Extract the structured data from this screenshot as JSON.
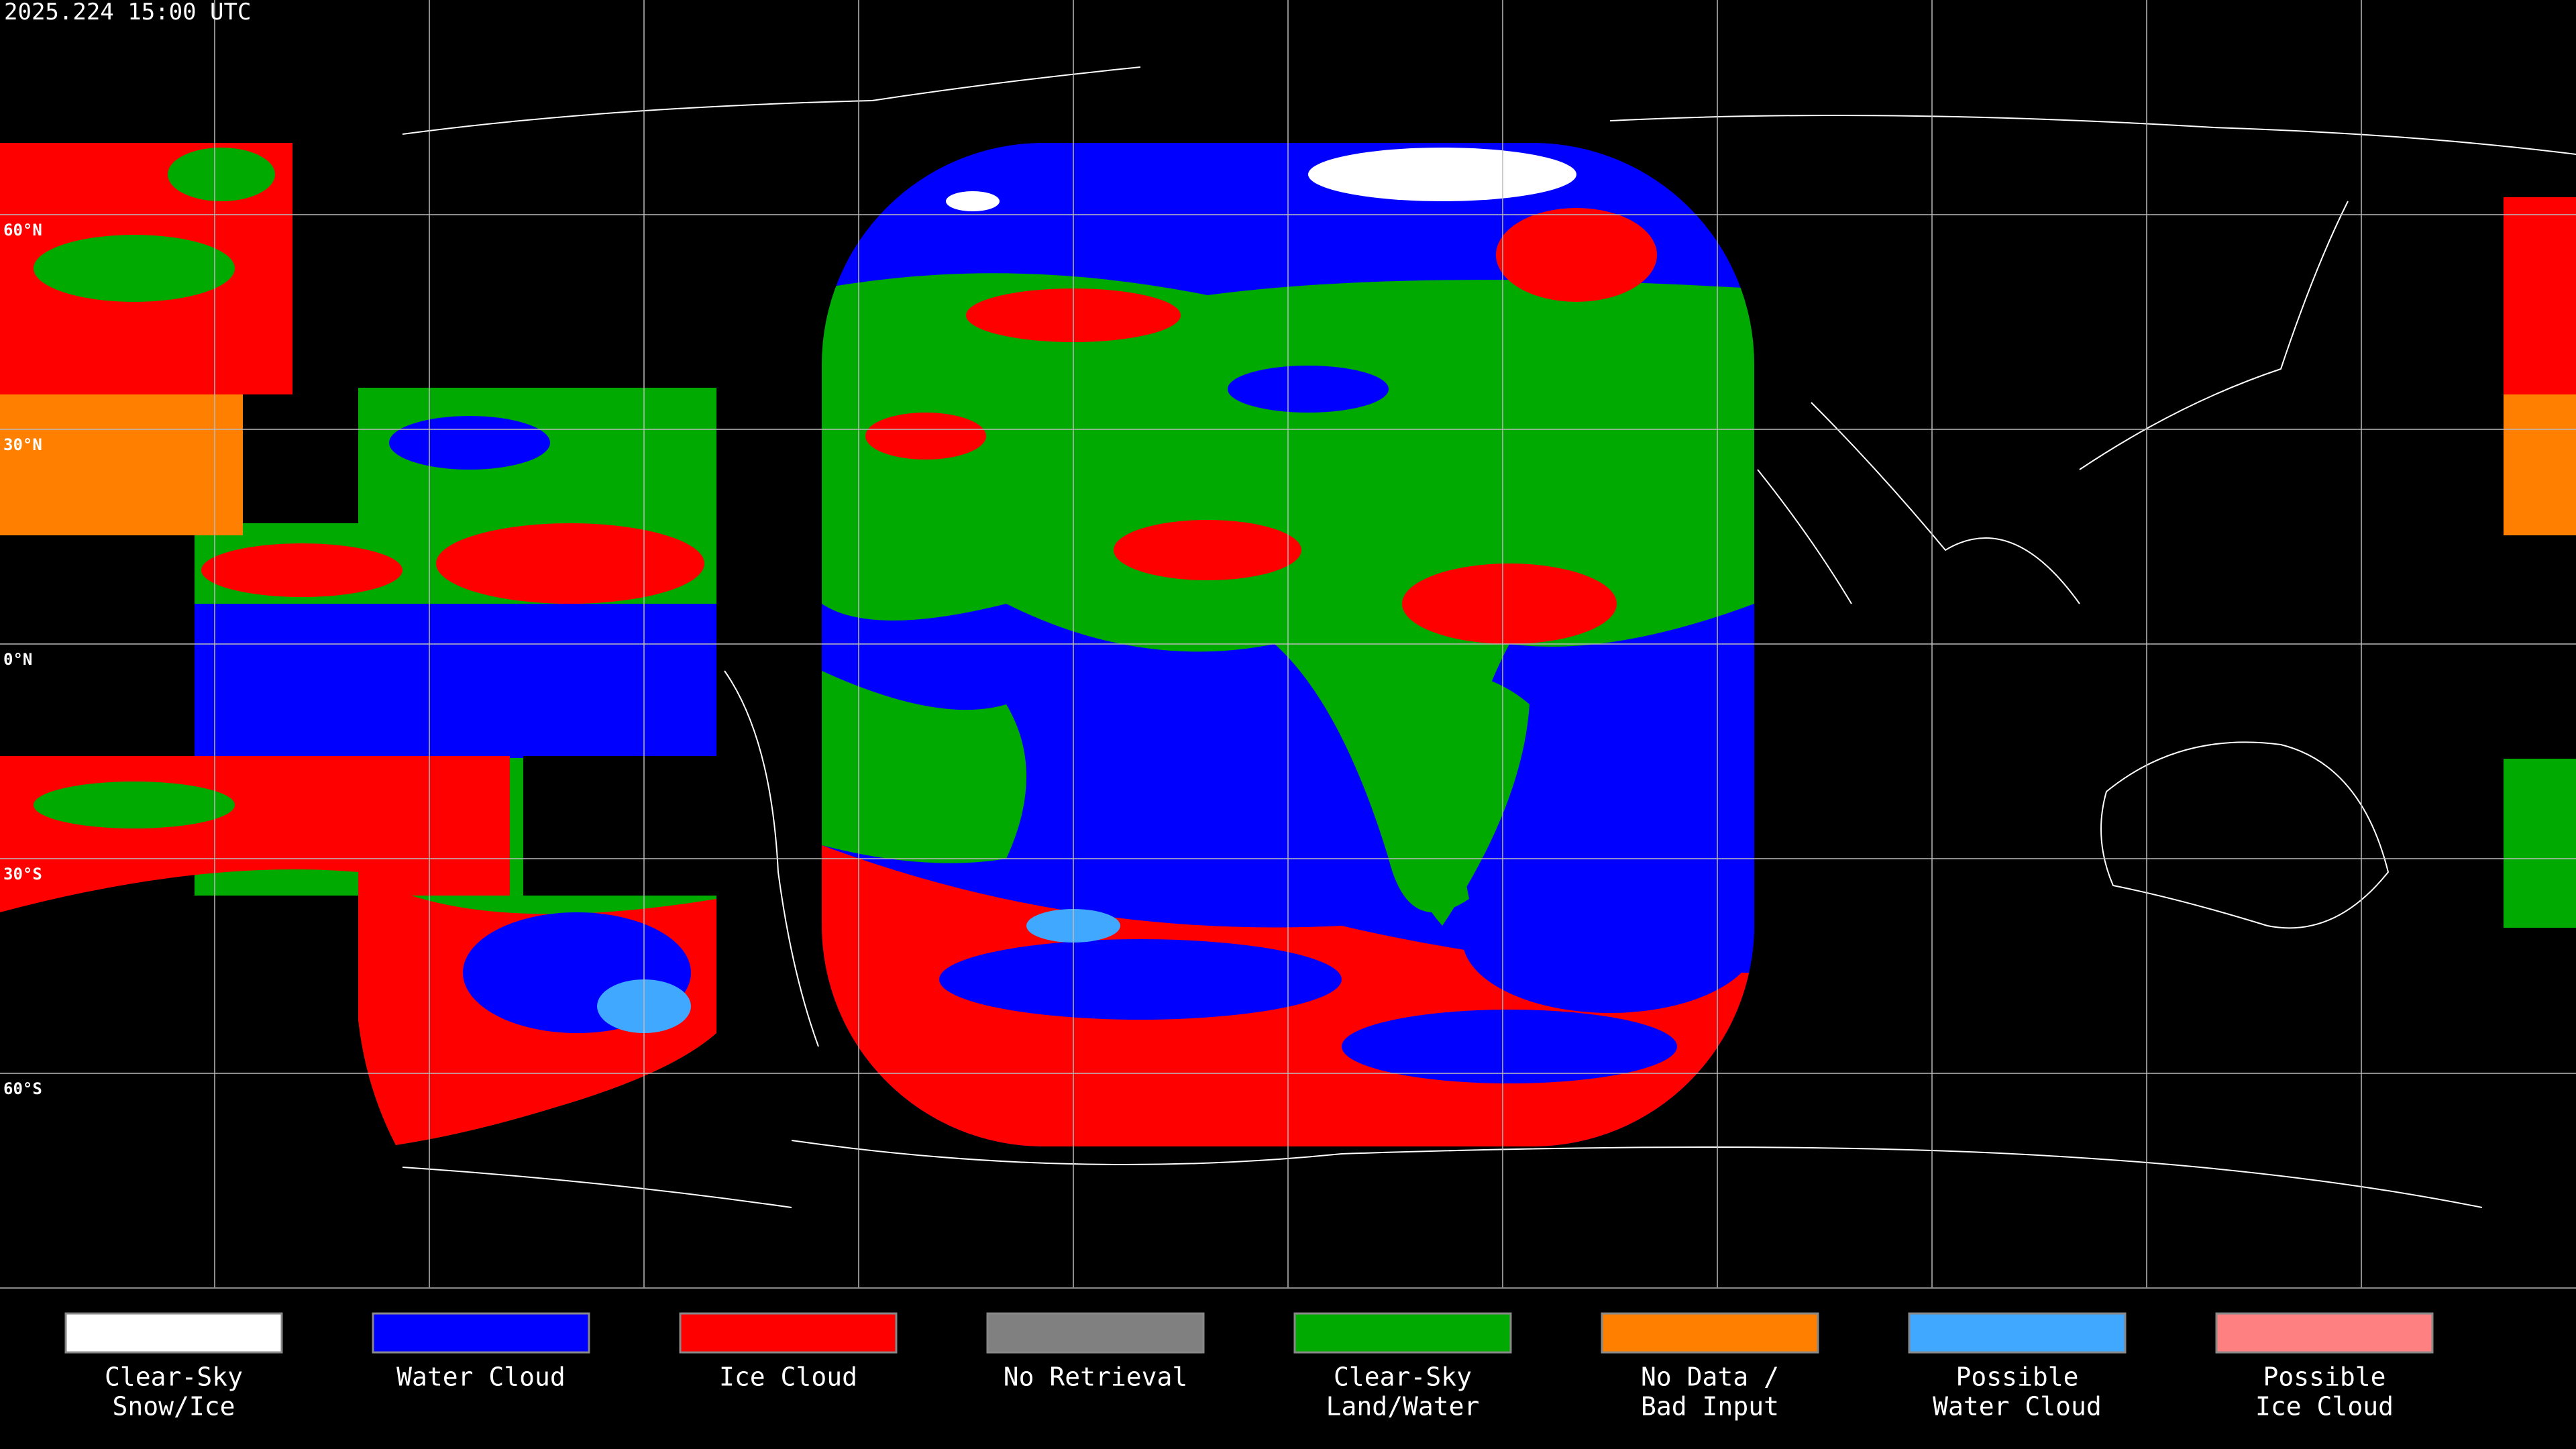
{
  "timestamp": "2025.224 15:00 UTC",
  "latitude_labels": [
    "60°N",
    "30°N",
    "0°N",
    "30°S",
    "60°S"
  ],
  "legend": [
    {
      "label": [
        "Clear-Sky",
        "Snow/Ice"
      ],
      "color": "#ffffff"
    },
    {
      "label": [
        "Water Cloud"
      ],
      "color": "#0000ff"
    },
    {
      "label": [
        "Ice Cloud"
      ],
      "color": "#ff0000"
    },
    {
      "label": [
        "No Retrieval"
      ],
      "color": "#808080"
    },
    {
      "label": [
        "Clear-Sky",
        "Land/Water"
      ],
      "color": "#00aa00"
    },
    {
      "label": [
        "No Data /",
        "Bad Input"
      ],
      "color": "#ff8000"
    },
    {
      "label": [
        "Possible",
        "Water Cloud"
      ],
      "color": "#40a8ff"
    },
    {
      "label": [
        "Possible",
        "Ice Cloud"
      ],
      "color": "#ff8080"
    }
  ]
}
